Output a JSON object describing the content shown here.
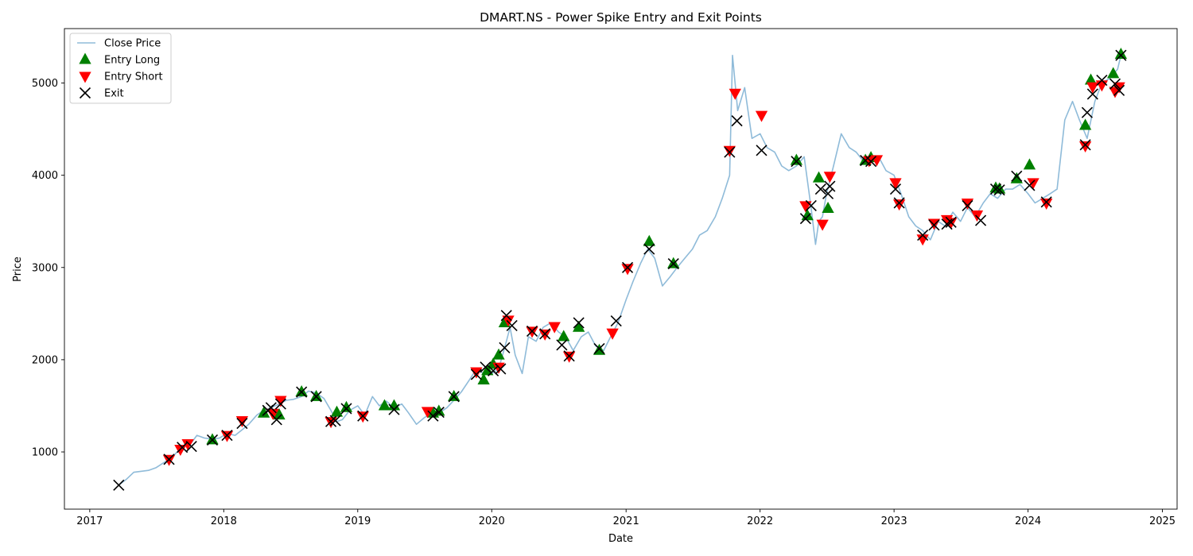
{
  "chart_data": {
    "type": "line",
    "title": "DMART.NS - Power Spike Entry and Exit Points",
    "xlabel": "Date",
    "ylabel": "Price",
    "xlim": [
      "2016-10-24",
      "2025-02-10"
    ],
    "ylim": [
      380,
      5590
    ],
    "x_ticks": [
      "2017",
      "2018",
      "2019",
      "2020",
      "2021",
      "2022",
      "2023",
      "2024",
      "2025"
    ],
    "y_ticks": [
      1000,
      2000,
      3000,
      4000,
      5000
    ],
    "grid": false,
    "legend": {
      "position": "upper left",
      "entries": [
        "Close Price",
        "Entry Long",
        "Entry Short",
        "Exit"
      ]
    },
    "colors": {
      "close": "#1f77b4",
      "long": "#008000",
      "short": "#ff0000",
      "exit": "#000000"
    },
    "series": [
      {
        "name": "Close Price",
        "x": [
          "2017-03-21",
          "2017-04-10",
          "2017-05-01",
          "2017-05-20",
          "2017-06-10",
          "2017-07-01",
          "2017-07-20",
          "2017-08-10",
          "2017-09-01",
          "2017-09-20",
          "2017-10-05",
          "2017-10-20",
          "2017-11-10",
          "2017-12-01",
          "2017-12-20",
          "2018-01-10",
          "2018-02-01",
          "2018-02-20",
          "2018-03-10",
          "2018-04-01",
          "2018-04-20",
          "2018-05-10",
          "2018-06-01",
          "2018-06-20",
          "2018-07-10",
          "2018-08-01",
          "2018-08-20",
          "2018-09-10",
          "2018-10-01",
          "2018-10-20",
          "2018-11-05",
          "2018-11-20",
          "2018-12-10",
          "2019-01-01",
          "2019-01-20",
          "2019-02-10",
          "2019-03-01",
          "2019-03-20",
          "2019-04-10",
          "2019-05-01",
          "2019-05-20",
          "2019-06-10",
          "2019-07-01",
          "2019-07-20",
          "2019-08-10",
          "2019-09-01",
          "2019-09-20",
          "2019-10-10",
          "2019-11-01",
          "2019-11-20",
          "2019-12-10",
          "2020-01-01",
          "2020-01-20",
          "2020-02-10",
          "2020-02-20",
          "2020-03-05",
          "2020-03-24",
          "2020-04-10",
          "2020-05-01",
          "2020-05-20",
          "2020-06-10",
          "2020-07-01",
          "2020-07-20",
          "2020-08-10",
          "2020-09-01",
          "2020-09-20",
          "2020-10-10",
          "2020-11-01",
          "2020-11-20",
          "2020-12-10",
          "2021-01-01",
          "2021-01-20",
          "2021-02-10",
          "2021-03-01",
          "2021-03-20",
          "2021-04-10",
          "2021-05-01",
          "2021-05-20",
          "2021-06-10",
          "2021-07-01",
          "2021-07-20",
          "2021-08-10",
          "2021-09-01",
          "2021-09-20",
          "2021-10-10",
          "2021-10-18",
          "2021-11-01",
          "2021-11-20",
          "2021-12-10",
          "2022-01-01",
          "2022-01-20",
          "2022-02-10",
          "2022-03-01",
          "2022-03-20",
          "2022-04-10",
          "2022-05-01",
          "2022-05-20",
          "2022-06-01",
          "2022-06-10",
          "2022-06-20",
          "2022-07-01",
          "2022-07-20",
          "2022-08-10",
          "2022-09-01",
          "2022-09-20",
          "2022-10-10",
          "2022-11-01",
          "2022-11-20",
          "2022-12-10",
          "2023-01-01",
          "2023-01-20",
          "2023-02-10",
          "2023-03-01",
          "2023-03-20",
          "2023-04-10",
          "2023-05-01",
          "2023-05-20",
          "2023-06-10",
          "2023-07-01",
          "2023-07-20",
          "2023-08-10",
          "2023-09-01",
          "2023-09-20",
          "2023-10-10",
          "2023-11-01",
          "2023-11-20",
          "2023-12-10",
          "2024-01-01",
          "2024-01-20",
          "2024-02-10",
          "2024-03-01",
          "2024-03-20",
          "2024-04-10",
          "2024-05-01",
          "2024-05-20",
          "2024-06-10",
          "2024-07-01",
          "2024-07-20",
          "2024-08-10",
          "2024-09-01",
          "2024-09-10"
        ],
        "values": [
          640,
          700,
          780,
          790,
          800,
          830,
          880,
          930,
          1020,
          1080,
          1100,
          1180,
          1150,
          1140,
          1150,
          1200,
          1180,
          1240,
          1300,
          1400,
          1450,
          1480,
          1520,
          1560,
          1570,
          1600,
          1660,
          1640,
          1580,
          1450,
          1330,
          1350,
          1450,
          1500,
          1400,
          1600,
          1500,
          1550,
          1480,
          1520,
          1420,
          1300,
          1370,
          1420,
          1420,
          1480,
          1560,
          1650,
          1780,
          1900,
          1850,
          1850,
          1900,
          2200,
          2350,
          2050,
          1850,
          2250,
          2200,
          2350,
          2400,
          2300,
          2250,
          2100,
          2250,
          2300,
          2150,
          2100,
          2250,
          2400,
          2650,
          2850,
          3050,
          3200,
          3100,
          2800,
          2900,
          3000,
          3100,
          3200,
          3350,
          3400,
          3550,
          3750,
          4000,
          5300,
          4700,
          4950,
          4400,
          4450,
          4300,
          4250,
          4100,
          4050,
          4100,
          4200,
          3650,
          3250,
          3500,
          3550,
          3800,
          4100,
          4450,
          4300,
          4250,
          4150,
          4200,
          4200,
          4050,
          4000,
          3800,
          3550,
          3450,
          3400,
          3300,
          3500,
          3450,
          3600,
          3500,
          3650,
          3550,
          3700,
          3800,
          3750,
          3850,
          3850,
          3900,
          3800,
          3700,
          3750,
          3800,
          3850,
          4600,
          4800,
          4600,
          4400,
          4800,
          5000,
          5050,
          5150,
          5300
        ]
      }
    ],
    "entry_long": {
      "x": [
        "2017-12-01",
        "2018-04-20",
        "2018-06-01",
        "2018-08-01",
        "2018-09-10",
        "2018-11-05",
        "2018-12-01",
        "2019-03-15",
        "2019-04-10",
        "2019-07-25",
        "2019-08-10",
        "2019-09-20",
        "2019-12-10",
        "2019-12-20",
        "2020-01-05",
        "2020-01-20",
        "2020-02-05",
        "2020-07-15",
        "2020-08-25",
        "2020-10-20",
        "2021-03-05",
        "2021-05-10",
        "2022-04-10",
        "2022-05-10",
        "2022-06-10",
        "2022-07-05",
        "2022-10-15",
        "2022-10-30",
        "2023-10-05",
        "2023-10-15",
        "2023-12-01",
        "2024-01-05",
        "2024-06-05",
        "2024-06-20",
        "2024-08-20",
        "2024-09-10"
      ],
      "values": [
        1130,
        1420,
        1400,
        1650,
        1600,
        1430,
        1480,
        1500,
        1500,
        1420,
        1440,
        1600,
        1780,
        1880,
        1950,
        2050,
        2400,
        2250,
        2350,
        2100,
        3280,
        3040,
        4160,
        3560,
        3970,
        3640,
        4160,
        4190,
        3860,
        3850,
        3960,
        4110,
        4540,
        5030,
        5100,
        5310
      ]
    },
    "entry_short": {
      "x": [
        "2017-08-05",
        "2017-09-05",
        "2017-09-25",
        "2018-01-10",
        "2018-02-20",
        "2018-05-15",
        "2018-06-05",
        "2018-10-20",
        "2019-01-15",
        "2019-07-10",
        "2019-11-20",
        "2020-01-20",
        "2020-02-15",
        "2020-04-20",
        "2020-05-25",
        "2020-06-20",
        "2020-07-30",
        "2020-11-25",
        "2021-01-05",
        "2021-10-10",
        "2021-10-25",
        "2022-01-05",
        "2022-05-05",
        "2022-06-20",
        "2022-07-10",
        "2022-10-25",
        "2022-11-15",
        "2023-01-05",
        "2023-01-15",
        "2023-03-20",
        "2023-04-20",
        "2023-05-25",
        "2023-06-05",
        "2023-07-20",
        "2023-08-15",
        "2024-01-15",
        "2024-02-20",
        "2024-06-05",
        "2024-06-25",
        "2024-07-20",
        "2024-08-25",
        "2024-09-05"
      ],
      "values": [
        920,
        1030,
        1090,
        1180,
        1340,
        1420,
        1560,
        1330,
        1390,
        1440,
        1870,
        1920,
        2430,
        2310,
        2280,
        2360,
        2040,
        2290,
        2990,
        4270,
        4890,
        4650,
        3670,
        3470,
        3990,
        4160,
        4170,
        3920,
        3690,
        3310,
        3480,
        3520,
        3490,
        3700,
        3570,
        3920,
        3700,
        4320,
        4960,
        4980,
        4910,
        4960
      ]
    },
    "exit": {
      "x": [
        "2017-03-21",
        "2017-08-05",
        "2017-09-10",
        "2017-10-05",
        "2017-12-01",
        "2018-01-10",
        "2018-02-20",
        "2018-05-01",
        "2018-05-10",
        "2018-05-25",
        "2018-06-05",
        "2018-08-01",
        "2018-09-10",
        "2018-10-20",
        "2018-11-01",
        "2018-12-01",
        "2019-01-15",
        "2019-04-10",
        "2019-07-25",
        "2019-08-10",
        "2019-09-20",
        "2019-11-20",
        "2019-12-15",
        "2020-01-05",
        "2020-01-25",
        "2020-02-05",
        "2020-02-10",
        "2020-02-25",
        "2020-04-20",
        "2020-05-25",
        "2020-07-10",
        "2020-07-30",
        "2020-08-25",
        "2020-10-20",
        "2020-12-05",
        "2021-01-05",
        "2021-03-05",
        "2021-05-10",
        "2021-10-10",
        "2021-10-30",
        "2022-01-05",
        "2022-04-10",
        "2022-05-05",
        "2022-05-20",
        "2022-06-15",
        "2022-07-05",
        "2022-07-10",
        "2022-10-15",
        "2022-10-30",
        "2023-01-05",
        "2023-01-15",
        "2023-03-20",
        "2023-04-20",
        "2023-05-25",
        "2023-06-05",
        "2023-07-20",
        "2023-08-25",
        "2023-10-05",
        "2023-10-15",
        "2023-12-01",
        "2024-01-05",
        "2024-02-20",
        "2024-06-05",
        "2024-06-10",
        "2024-06-25",
        "2024-07-20",
        "2024-08-25",
        "2024-09-05",
        "2024-09-10"
      ],
      "values": [
        640,
        920,
        1050,
        1060,
        1130,
        1180,
        1310,
        1450,
        1480,
        1350,
        1520,
        1650,
        1600,
        1330,
        1340,
        1470,
        1390,
        1460,
        1390,
        1430,
        1600,
        1840,
        1920,
        1880,
        1900,
        2130,
        2480,
        2370,
        2310,
        2280,
        2160,
        2040,
        2400,
        2120,
        2420,
        3000,
        3200,
        3040,
        4250,
        4590,
        4270,
        4150,
        3530,
        3670,
        3850,
        3800,
        3880,
        4160,
        4150,
        3850,
        3700,
        3350,
        3460,
        3470,
        3490,
        3670,
        3510,
        3850,
        3840,
        3990,
        3890,
        3710,
        4330,
        4680,
        4880,
        5030,
        4990,
        4920,
        5300
      ]
    }
  }
}
